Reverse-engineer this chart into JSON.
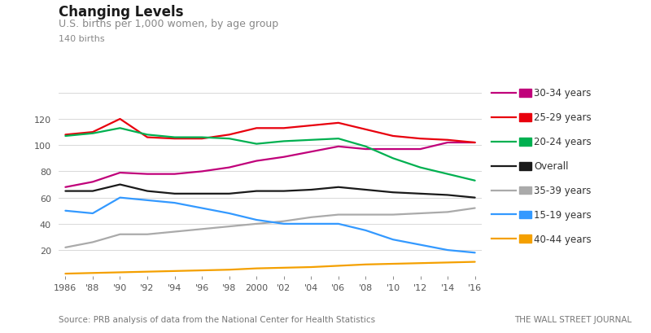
{
  "title": "Changing Levels",
  "subtitle": "U.S. births per 1,000 women, by age group",
  "ylabel_top": "140 births",
  "source": "Source: PRB analysis of data from the National Center for Health Statistics",
  "credit": "THE WALL STREET JOURNAL",
  "years": [
    1986,
    1988,
    1990,
    1992,
    1994,
    1996,
    1998,
    2000,
    2002,
    2004,
    2006,
    2008,
    2010,
    2012,
    2014,
    2016
  ],
  "series": [
    {
      "label": "30-34 years",
      "color": "#c0007a",
      "values": [
        68,
        72,
        79,
        78,
        78,
        80,
        83,
        88,
        91,
        95,
        99,
        97,
        97,
        97,
        102,
        102
      ]
    },
    {
      "label": "25-29 years",
      "color": "#e8000d",
      "values": [
        108,
        110,
        120,
        106,
        105,
        105,
        108,
        113,
        113,
        115,
        117,
        112,
        107,
        105,
        104,
        102
      ]
    },
    {
      "label": "20-24 years",
      "color": "#00b050",
      "values": [
        107,
        109,
        113,
        108,
        106,
        106,
        105,
        101,
        103,
        104,
        105,
        99,
        90,
        83,
        78,
        73
      ]
    },
    {
      "label": "Overall",
      "color": "#1a1a1a",
      "values": [
        65,
        65,
        70,
        65,
        63,
        63,
        63,
        65,
        65,
        66,
        68,
        66,
        64,
        63,
        62,
        60
      ]
    },
    {
      "label": "35-39 years",
      "color": "#aaaaaa",
      "values": [
        22,
        26,
        32,
        32,
        34,
        36,
        38,
        40,
        42,
        45,
        47,
        47,
        47,
        48,
        49,
        52
      ]
    },
    {
      "label": "15-19 years",
      "color": "#3399ff",
      "values": [
        50,
        48,
        60,
        58,
        56,
        52,
        48,
        43,
        40,
        40,
        40,
        35,
        28,
        24,
        20,
        18
      ]
    },
    {
      "label": "40-44 years",
      "color": "#f4a000",
      "values": [
        2,
        2.5,
        3,
        3.5,
        4,
        4.5,
        5,
        6,
        6.5,
        7,
        8,
        9,
        9.5,
        10,
        10.5,
        11
      ]
    }
  ],
  "xlim": [
    1985.5,
    2016.5
  ],
  "ylim": [
    0,
    140
  ],
  "yticks": [
    0,
    20,
    40,
    60,
    80,
    100,
    120
  ],
  "xtick_labels": [
    "1986",
    "'88",
    "'90",
    "'92",
    "'94",
    "'96",
    "'98",
    "2000",
    "'02",
    "'04",
    "'06",
    "'08",
    "'10",
    "'12",
    "'14",
    "'16"
  ],
  "xtick_values": [
    1986,
    1988,
    1990,
    1992,
    1994,
    1996,
    1998,
    2000,
    2002,
    2004,
    2006,
    2008,
    2010,
    2012,
    2014,
    2016
  ]
}
